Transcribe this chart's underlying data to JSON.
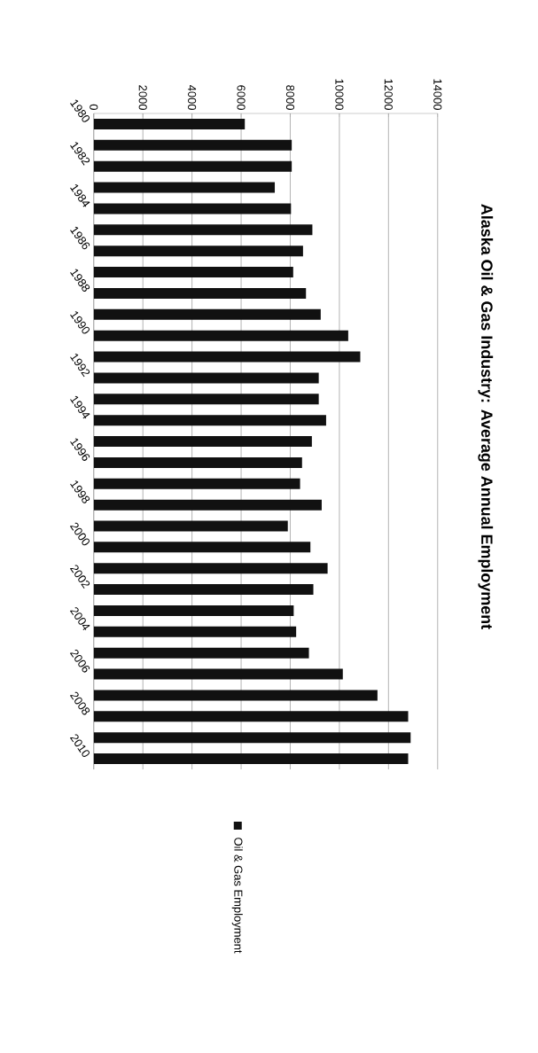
{
  "chart_data": {
    "type": "bar",
    "orientation": "horizontal",
    "title": "Alaska Oil & Gas Industry:  Average Annual Employment",
    "categories": [
      "1980",
      null,
      "1982",
      null,
      "1984",
      null,
      "1986",
      null,
      "1988",
      null,
      "1990",
      null,
      "1992",
      null,
      "1994",
      null,
      "1996",
      null,
      "1998",
      null,
      "2000",
      null,
      "2002",
      null,
      "2004",
      null,
      "2006",
      null,
      "2008",
      null,
      "2010"
    ],
    "series": [
      {
        "name": "Oil & Gas Employment",
        "color": "#111111",
        "values": [
          6150,
          8060,
          8060,
          7370,
          8030,
          8900,
          8520,
          8120,
          8640,
          9240,
          10360,
          10850,
          9160,
          9160,
          9460,
          8880,
          8480,
          8400,
          9280,
          7900,
          8820,
          9520,
          8940,
          8140,
          8240,
          8760,
          10140,
          11550,
          12800,
          12900,
          12800
        ]
      }
    ],
    "xlim": [
      0,
      14000
    ],
    "xticks": [
      0,
      2000,
      4000,
      6000,
      8000,
      10000,
      12000,
      14000
    ],
    "grid": "x",
    "legend": "bottom"
  }
}
